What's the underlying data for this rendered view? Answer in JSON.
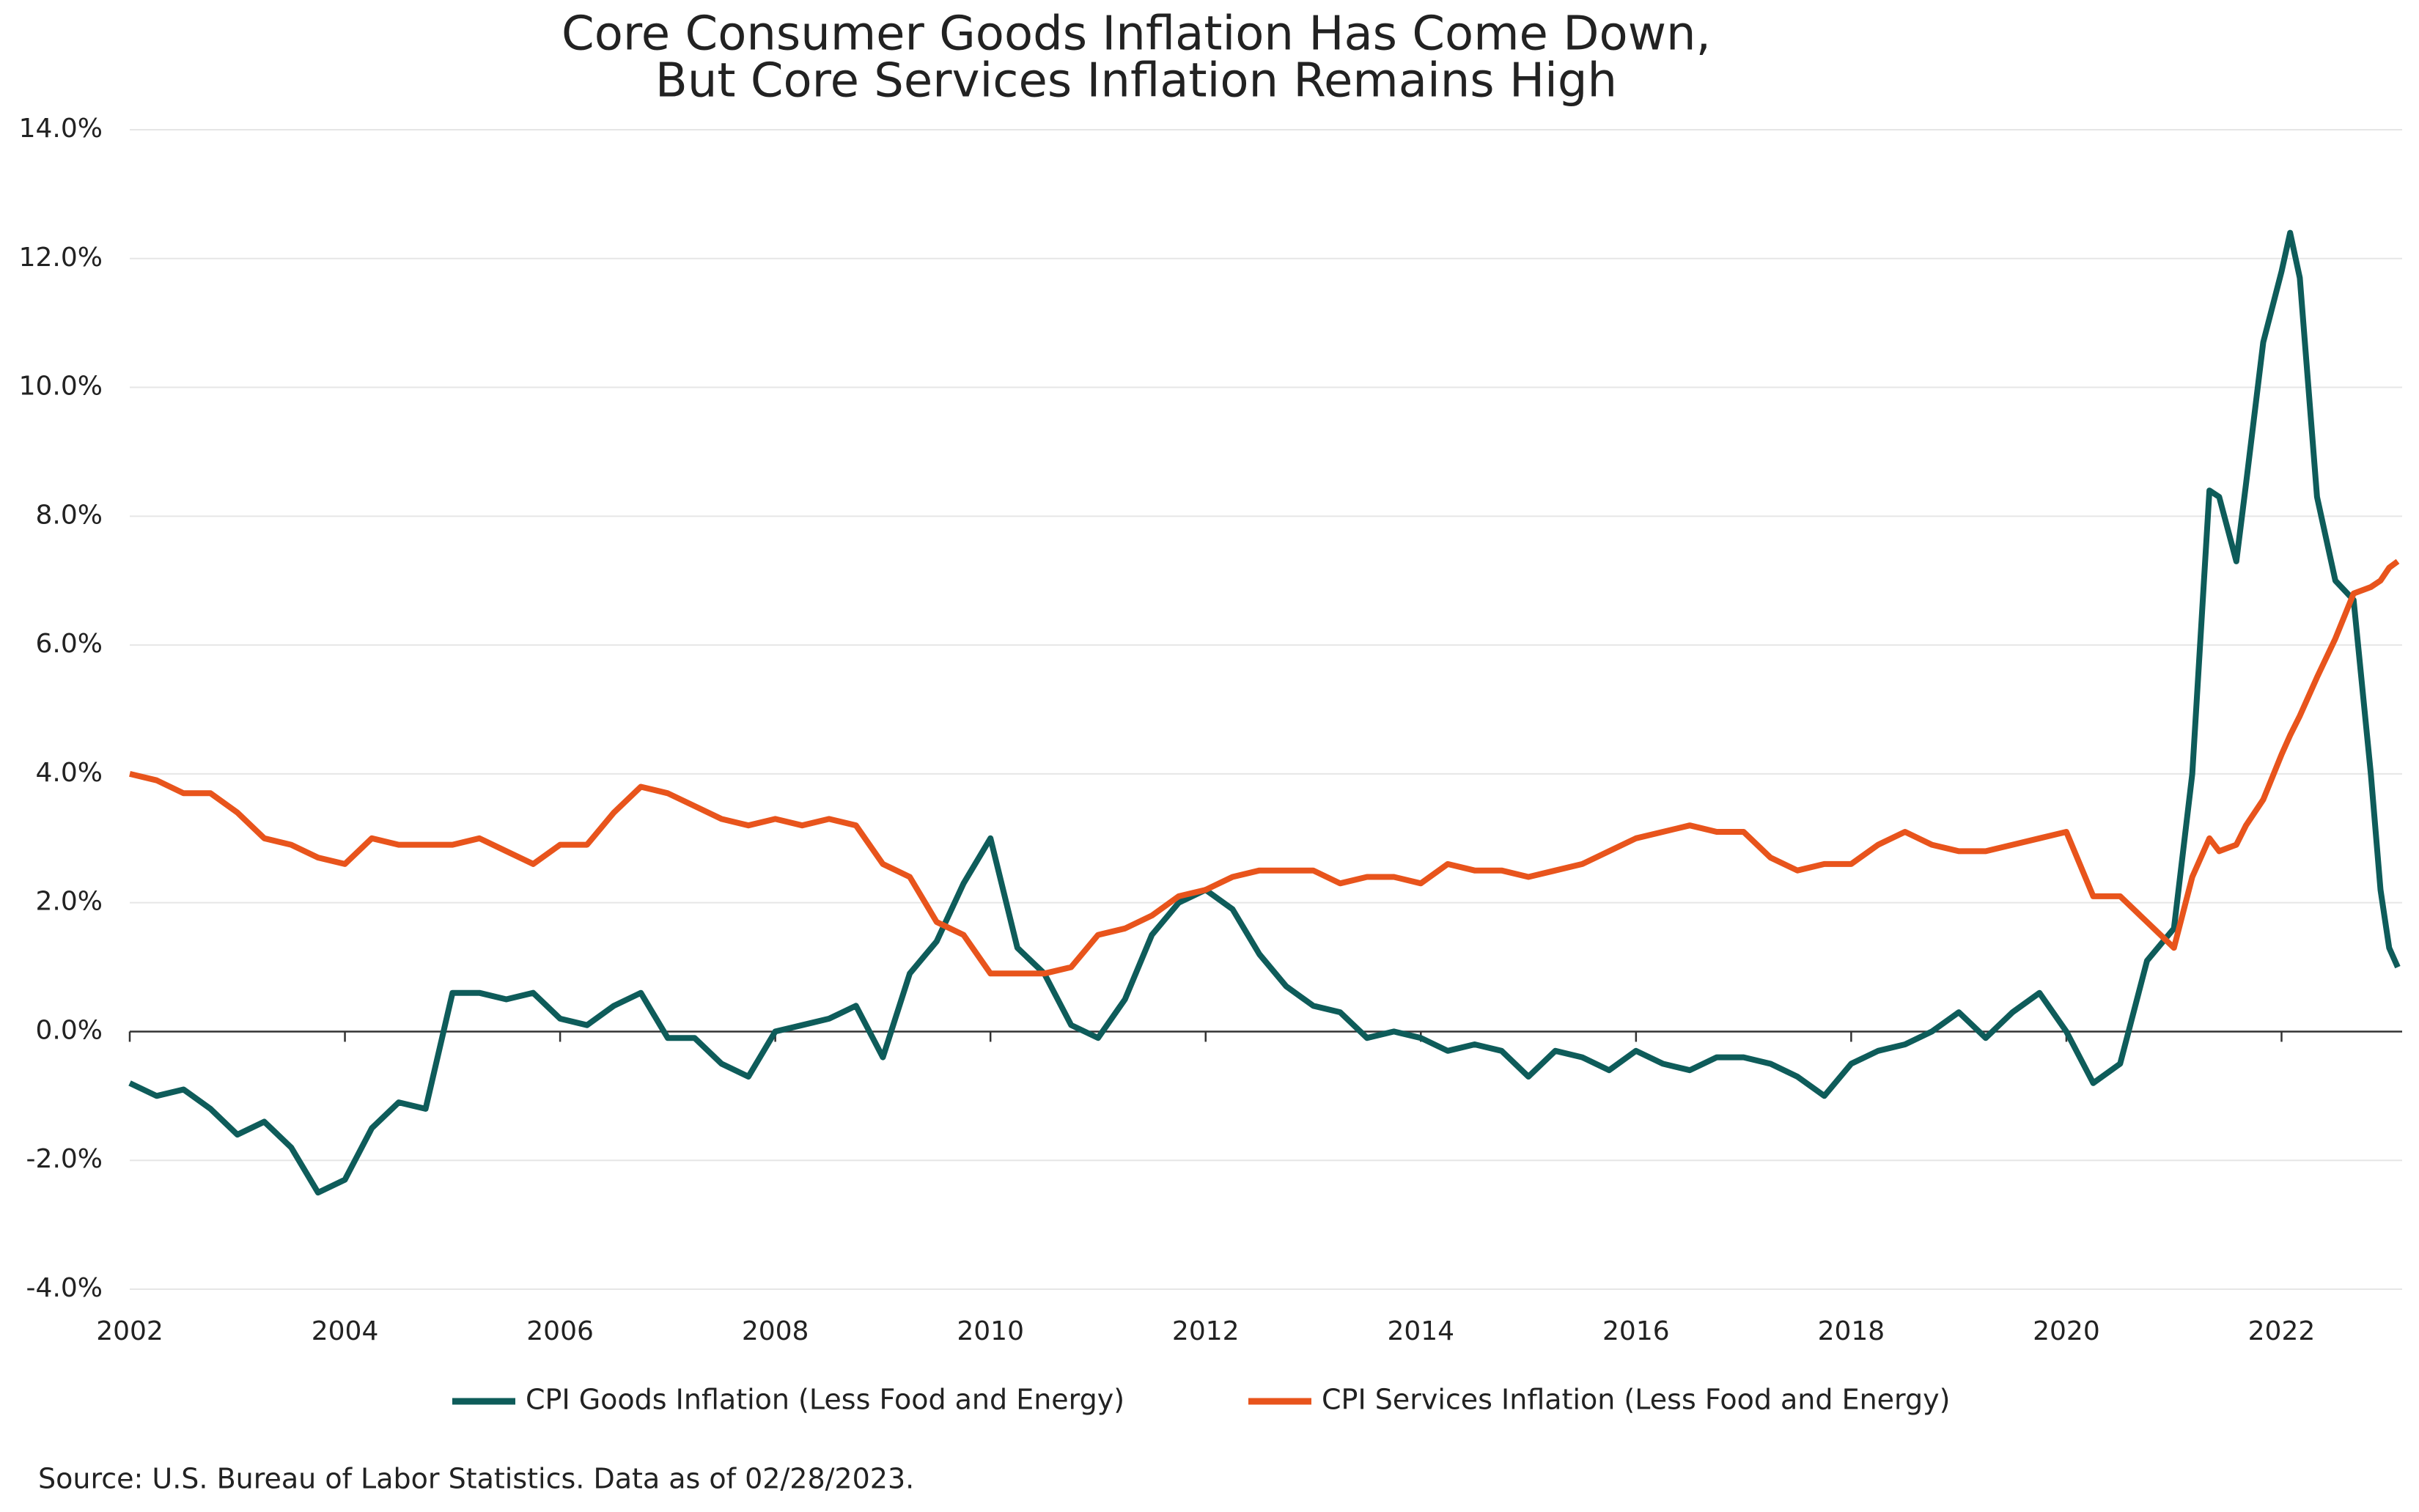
{
  "chart_data": {
    "type": "line",
    "title": [
      "Core Consumer Goods Inflation Has Come Down,",
      "But Core Services Inflation Remains High"
    ],
    "source": "Source: U.S. Bureau of Labor Statistics. Data as of 02/28/2023.",
    "x": [
      2002.0,
      2002.25,
      2002.5,
      2002.75,
      2003.0,
      2003.25,
      2003.5,
      2003.75,
      2004.0,
      2004.25,
      2004.5,
      2004.75,
      2005.0,
      2005.25,
      2005.5,
      2005.75,
      2006.0,
      2006.25,
      2006.5,
      2006.75,
      2007.0,
      2007.25,
      2007.5,
      2007.75,
      2008.0,
      2008.25,
      2008.5,
      2008.75,
      2009.0,
      2009.25,
      2009.5,
      2009.75,
      2010.0,
      2010.25,
      2010.5,
      2010.75,
      2011.0,
      2011.25,
      2011.5,
      2011.75,
      2012.0,
      2012.25,
      2012.5,
      2012.75,
      2013.0,
      2013.25,
      2013.5,
      2013.75,
      2014.0,
      2014.25,
      2014.5,
      2014.75,
      2015.0,
      2015.25,
      2015.5,
      2015.75,
      2016.0,
      2016.25,
      2016.5,
      2016.75,
      2017.0,
      2017.25,
      2017.5,
      2017.75,
      2018.0,
      2018.25,
      2018.5,
      2018.75,
      2019.0,
      2019.25,
      2019.5,
      2019.75,
      2020.0,
      2020.25,
      2020.5,
      2020.75,
      2021.0,
      2021.17,
      2021.33,
      2021.42,
      2021.58,
      2021.67,
      2021.83,
      2022.0,
      2022.08,
      2022.17,
      2022.33,
      2022.5,
      2022.67,
      2022.83,
      2022.92,
      2023.0,
      2023.08
    ],
    "series": [
      {
        "name": "CPI Goods Inflation (Less Food and Energy)",
        "color": "#0e5c5a",
        "values": [
          -0.8,
          -1.0,
          -0.9,
          -1.2,
          -1.6,
          -1.4,
          -1.8,
          -2.5,
          -2.3,
          -1.5,
          -1.1,
          -1.2,
          0.6,
          0.6,
          0.5,
          0.6,
          0.2,
          0.1,
          0.4,
          0.6,
          -0.1,
          -0.1,
          -0.5,
          -0.7,
          0.0,
          0.1,
          0.2,
          0.4,
          -0.4,
          0.9,
          1.4,
          2.3,
          3.0,
          1.3,
          0.9,
          0.1,
          -0.1,
          0.5,
          1.5,
          2.0,
          2.2,
          1.9,
          1.2,
          0.7,
          0.4,
          0.3,
          -0.1,
          0.0,
          -0.1,
          -0.3,
          -0.2,
          -0.3,
          -0.7,
          -0.3,
          -0.4,
          -0.6,
          -0.3,
          -0.5,
          -0.6,
          -0.4,
          -0.4,
          -0.5,
          -0.7,
          -1.0,
          -0.5,
          -0.3,
          -0.2,
          0.0,
          0.3,
          -0.1,
          0.3,
          0.6,
          0.0,
          -0.8,
          -0.5,
          1.1,
          1.6,
          4.0,
          8.4,
          8.3,
          7.3,
          8.5,
          10.7,
          11.8,
          12.4,
          11.7,
          8.3,
          7.0,
          6.7,
          4.0,
          2.2,
          1.3,
          1.0
        ]
      },
      {
        "name": "CPI Services Inflation (Less Food and Energy)",
        "color": "#e8541c",
        "values": [
          4.0,
          3.9,
          3.7,
          3.7,
          3.4,
          3.0,
          2.9,
          2.7,
          2.6,
          3.0,
          2.9,
          2.9,
          2.9,
          3.0,
          2.8,
          2.6,
          2.9,
          2.9,
          3.4,
          3.8,
          3.7,
          3.5,
          3.3,
          3.2,
          3.3,
          3.2,
          3.3,
          3.2,
          2.6,
          2.4,
          1.7,
          1.5,
          0.9,
          0.9,
          0.9,
          1.0,
          1.5,
          1.6,
          1.8,
          2.1,
          2.2,
          2.4,
          2.5,
          2.5,
          2.5,
          2.3,
          2.4,
          2.4,
          2.3,
          2.6,
          2.5,
          2.5,
          2.4,
          2.5,
          2.6,
          2.8,
          3.0,
          3.1,
          3.2,
          3.1,
          3.1,
          2.7,
          2.5,
          2.6,
          2.6,
          2.9,
          3.1,
          2.9,
          2.8,
          2.8,
          2.9,
          3.0,
          3.1,
          2.1,
          2.1,
          1.7,
          1.3,
          2.4,
          3.0,
          2.8,
          2.9,
          3.2,
          3.6,
          4.3,
          4.6,
          4.9,
          5.5,
          6.1,
          6.8,
          6.9,
          7.0,
          7.2,
          7.3
        ]
      }
    ],
    "xlim": [
      2002,
      2023.08
    ],
    "xticks": [
      2002,
      2004,
      2006,
      2008,
      2010,
      2012,
      2014,
      2016,
      2018,
      2020,
      2022
    ],
    "ylim": [
      -4,
      14
    ],
    "yticks": [
      {
        "value": -4,
        "label": "-4.0%"
      },
      {
        "value": -2,
        "label": "-2.0%"
      },
      {
        "value": 0,
        "label": "0.0%"
      },
      {
        "value": 2,
        "label": "2.0%"
      },
      {
        "value": 4,
        "label": "4.0%"
      },
      {
        "value": 6,
        "label": "6.0%"
      },
      {
        "value": 8,
        "label": "8.0%"
      },
      {
        "value": 10,
        "label": "10.0%"
      },
      {
        "value": 12,
        "label": "12.0%"
      },
      {
        "value": 14,
        "label": "14.0%"
      }
    ],
    "grid": true
  }
}
